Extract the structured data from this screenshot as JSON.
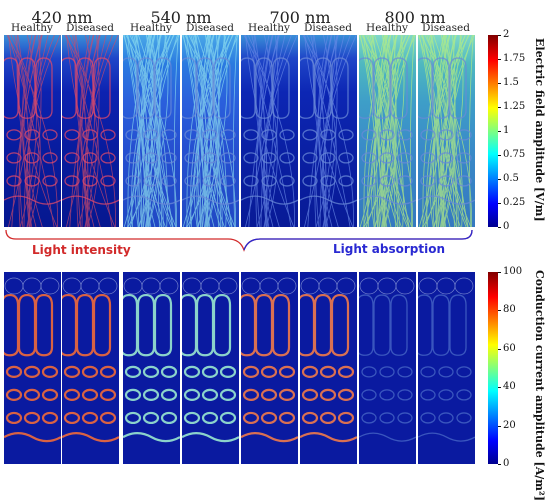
{
  "wavelengths": [
    "420 nm",
    "540 nm",
    "700 nm",
    "800 nm"
  ],
  "conditions": [
    "Healthy",
    "Diseased"
  ],
  "top_colorbar": {
    "label": "Electric field amplitude [V/m]",
    "ticks": [
      "2",
      "1.75",
      "1.5",
      "1.25",
      "1",
      "0.75",
      "0.5",
      "0.25",
      "0"
    ]
  },
  "bottom_colorbar": {
    "label": "Conduction current amplitude [A/m²]",
    "ticks": [
      "100",
      "80",
      "60",
      "40",
      "20",
      "0"
    ]
  },
  "brace": {
    "left_label": "Light intensity",
    "right_label": "Light absorption",
    "left_color": "#d22a2a",
    "right_color": "#2a2ad2"
  },
  "colors": {
    "jet_low": "#00008f",
    "jet_mid": "#00ffff",
    "jet_high": "#800000"
  }
}
